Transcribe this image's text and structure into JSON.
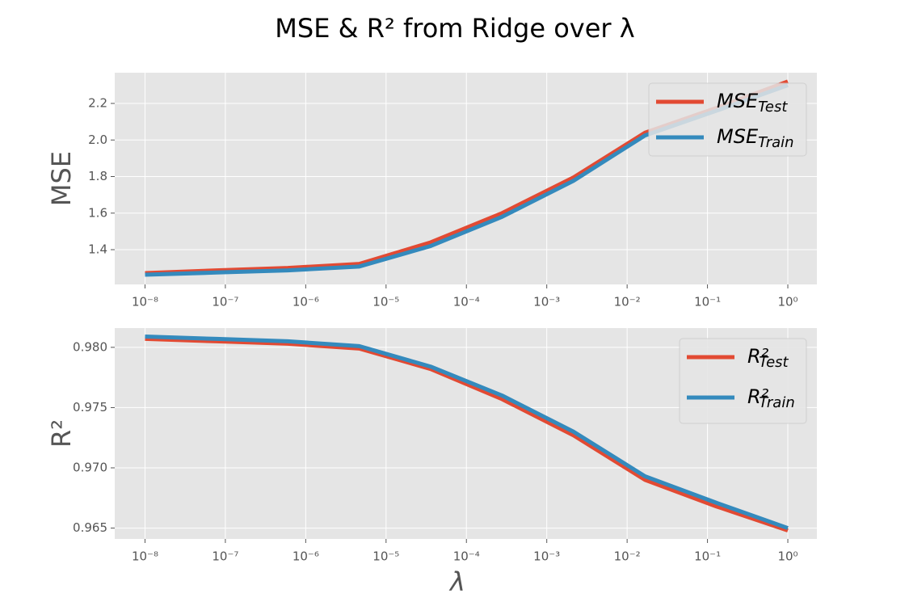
{
  "title": "MSE & R² from Ridge over λ",
  "chart_data": [
    {
      "type": "line",
      "ylabel": "MSE",
      "xscale": "log",
      "grid": true,
      "legend": "upper right",
      "x": [
        1e-08,
        7.74e-08,
        5.99e-07,
        4.64e-06,
        3.59e-05,
        0.000278,
        0.00215,
        0.0167,
        0.129,
        1
      ],
      "series": [
        {
          "name": "MSE",
          "subscript": "Test",
          "color": "#E24A33",
          "values": [
            1.272,
            1.287,
            1.3,
            1.322,
            1.44,
            1.6,
            1.795,
            2.04,
            2.175,
            2.32
          ]
        },
        {
          "name": "MSE",
          "subscript": "Train",
          "color": "#348ABD",
          "values": [
            1.263,
            1.275,
            1.287,
            1.308,
            1.42,
            1.58,
            1.777,
            2.025,
            2.16,
            2.3
          ]
        }
      ],
      "xlim": [
        4.2e-09,
        2.3
      ],
      "xticks": [
        {
          "value": 1e-08,
          "label": "10⁻⁸"
        },
        {
          "value": 1e-07,
          "label": "10⁻⁷"
        },
        {
          "value": 1e-06,
          "label": "10⁻⁶"
        },
        {
          "value": 1e-05,
          "label": "10⁻⁵"
        },
        {
          "value": 0.0001,
          "label": "10⁻⁴"
        },
        {
          "value": 0.001,
          "label": "10⁻³"
        },
        {
          "value": 0.01,
          "label": "10⁻²"
        },
        {
          "value": 0.1,
          "label": "10⁻¹"
        },
        {
          "value": 1,
          "label": "10⁰"
        }
      ],
      "ylim": [
        1.21,
        2.368
      ],
      "yticks": [
        1.4,
        1.6,
        1.8,
        {
          "value": 2,
          "label": "2.0"
        },
        2.2
      ]
    },
    {
      "type": "line",
      "ylabel": "R²",
      "xlabel": "λ",
      "xscale": "log",
      "grid": true,
      "legend": "upper right",
      "x": [
        1e-08,
        7.74e-08,
        5.99e-07,
        4.64e-06,
        3.59e-05,
        0.000278,
        0.00215,
        0.0167,
        0.129,
        1
      ],
      "series": [
        {
          "name": "R²",
          "subscript": "Test",
          "color": "#E24A33",
          "values": [
            0.9807,
            0.9805,
            0.9803,
            0.9799,
            0.9782,
            0.9757,
            0.9727,
            0.969,
            0.9668,
            0.9648
          ]
        },
        {
          "name": "R²",
          "subscript": "Train",
          "color": "#348ABD",
          "values": [
            0.9809,
            0.9807,
            0.9805,
            0.9801,
            0.9784,
            0.976,
            0.973,
            0.9693,
            0.9671,
            0.965
          ]
        }
      ],
      "xlim": [
        4.2e-09,
        2.3
      ],
      "xticks": [
        {
          "value": 1e-08,
          "label": "10⁻⁸"
        },
        {
          "value": 1e-07,
          "label": "10⁻⁷"
        },
        {
          "value": 1e-06,
          "label": "10⁻⁶"
        },
        {
          "value": 1e-05,
          "label": "10⁻⁵"
        },
        {
          "value": 0.0001,
          "label": "10⁻⁴"
        },
        {
          "value": 0.001,
          "label": "10⁻³"
        },
        {
          "value": 0.01,
          "label": "10⁻²"
        },
        {
          "value": 0.1,
          "label": "10⁻¹"
        },
        {
          "value": 1,
          "label": "10⁰"
        }
      ],
      "ylim": [
        0.9641,
        0.9816
      ],
      "yticks": [
        {
          "value": 0.965,
          "label": "0.965"
        },
        {
          "value": 0.97,
          "label": "0.970"
        },
        {
          "value": 0.975,
          "label": "0.975"
        },
        {
          "value": 0.98,
          "label": "0.980"
        }
      ]
    }
  ]
}
